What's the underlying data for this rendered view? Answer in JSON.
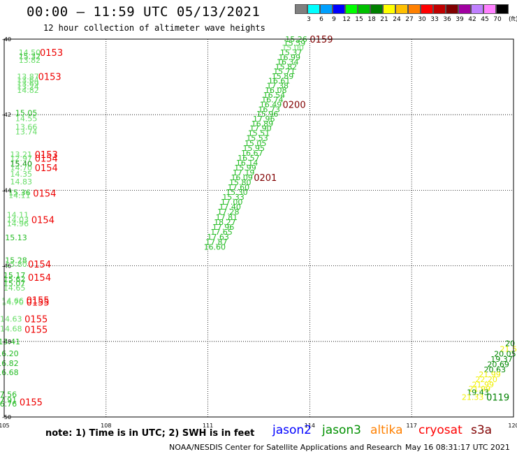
{
  "title": "00:00 – 11:59 UTC 05/13/2021",
  "subtitle": "12 hour collection of altimeter wave heights",
  "legend": {
    "unit": "(ft)",
    "bins": [
      {
        "label": "3",
        "color": "#808080"
      },
      {
        "label": "6",
        "color": "#00ffff"
      },
      {
        "label": "9",
        "color": "#00a0ff"
      },
      {
        "label": "12",
        "color": "#0000ff"
      },
      {
        "label": "15",
        "color": "#00ff00"
      },
      {
        "label": "18",
        "color": "#00c000"
      },
      {
        "label": "21",
        "color": "#008000"
      },
      {
        "label": "24",
        "color": "#ffff00"
      },
      {
        "label": "27",
        "color": "#ffc000"
      },
      {
        "label": "30",
        "color": "#ff8000"
      },
      {
        "label": "33",
        "color": "#ff0000"
      },
      {
        "label": "36",
        "color": "#c00000"
      },
      {
        "label": "39",
        "color": "#800000"
      },
      {
        "label": "42",
        "color": "#a000a0"
      },
      {
        "label": "45",
        "color": "#c080ff"
      },
      {
        "label": "70",
        "color": "#ff80ff"
      },
      {
        "label": "",
        "color": "#000000"
      }
    ]
  },
  "axes": {
    "lon_ticks": [
      "105",
      "108",
      "111",
      "114",
      "117",
      "120"
    ],
    "lat_ticks": [
      "-40",
      "-42",
      "-44",
      "-46",
      "-48",
      "-50"
    ]
  },
  "colors": {
    "light": "#66dd66",
    "mid": "#22bb22",
    "dark": "#008800",
    "yellow": "#f0f000",
    "time_red": "#ee0000",
    "time_dark": "#800000",
    "time_green": "#008000"
  },
  "tracks": [
    {
      "id": "western",
      "points": [
        {
          "v": "14.50",
          "lon": 105.75,
          "lat": -40.35,
          "c": "light"
        },
        {
          "v": "15.32",
          "lon": 105.75,
          "lat": -40.45,
          "c": "mid"
        },
        {
          "v": "13.82",
          "lon": 105.75,
          "lat": -40.55,
          "c": "light"
        },
        {
          "v": "13.87",
          "lon": 105.7,
          "lat": -40.99,
          "c": "light"
        },
        {
          "v": "13.64",
          "lon": 105.7,
          "lat": -41.08,
          "c": "light"
        },
        {
          "v": "13.69",
          "lon": 105.7,
          "lat": -41.17,
          "c": "light"
        },
        {
          "v": "13.24",
          "lon": 105.7,
          "lat": -41.26,
          "c": "light"
        },
        {
          "v": "14.82",
          "lon": 105.7,
          "lat": -41.35,
          "c": "light"
        },
        {
          "v": "15.05",
          "lon": 105.65,
          "lat": -41.95,
          "c": "mid"
        },
        {
          "v": "14.55",
          "lon": 105.65,
          "lat": -42.1,
          "c": "light"
        },
        {
          "v": "13.66",
          "lon": 105.65,
          "lat": -42.32,
          "c": "light"
        },
        {
          "v": "13.74",
          "lon": 105.65,
          "lat": -42.45,
          "c": "light"
        },
        {
          "v": "13.21",
          "lon": 105.5,
          "lat": -43.05,
          "c": "light"
        },
        {
          "v": "12.97",
          "lon": 105.5,
          "lat": -43.15,
          "c": "light"
        },
        {
          "v": "15.40",
          "lon": 105.5,
          "lat": -43.3,
          "c": "dark"
        },
        {
          "v": "14.70",
          "lon": 105.5,
          "lat": -43.4,
          "c": "light"
        },
        {
          "v": "14.35",
          "lon": 105.5,
          "lat": -43.57,
          "c": "light"
        },
        {
          "v": "14.83",
          "lon": 105.5,
          "lat": -43.77,
          "c": "light"
        },
        {
          "v": "15.36",
          "lon": 105.45,
          "lat": -44.06,
          "c": "mid"
        },
        {
          "v": "14.11",
          "lon": 105.45,
          "lat": -44.13,
          "c": "light"
        },
        {
          "v": "14.11",
          "lon": 105.4,
          "lat": -44.65,
          "c": "light"
        },
        {
          "v": "14.03",
          "lon": 105.4,
          "lat": -44.78,
          "c": "light"
        },
        {
          "v": "14.96",
          "lon": 105.4,
          "lat": -44.88,
          "c": "light"
        },
        {
          "v": "15.13",
          "lon": 105.35,
          "lat": -45.25,
          "c": "mid"
        },
        {
          "v": "15.28",
          "lon": 105.35,
          "lat": -45.85,
          "c": "mid"
        },
        {
          "v": "15.80",
          "lon": 105.35,
          "lat": -45.95,
          "c": "light"
        },
        {
          "v": "15.17",
          "lon": 105.3,
          "lat": -46.25,
          "c": "mid"
        },
        {
          "v": "15.62",
          "lon": 105.3,
          "lat": -46.35,
          "c": "mid"
        },
        {
          "v": "15.07",
          "lon": 105.3,
          "lat": -46.46,
          "c": "mid"
        },
        {
          "v": "14.65",
          "lon": 105.3,
          "lat": -46.58,
          "c": "light"
        },
        {
          "v": "14.66",
          "lon": 105.25,
          "lat": -46.92,
          "c": "light"
        },
        {
          "v": "14.70",
          "lon": 105.25,
          "lat": -46.96,
          "c": "light"
        },
        {
          "v": "14.63",
          "lon": 105.2,
          "lat": -47.4,
          "c": "light"
        },
        {
          "v": "14.68",
          "lon": 105.2,
          "lat": -47.66,
          "c": "light"
        },
        {
          "v": "15.41",
          "lon": 105.15,
          "lat": -48.0,
          "c": "mid"
        },
        {
          "v": "16.20",
          "lon": 105.1,
          "lat": -48.32,
          "c": "mid"
        },
        {
          "v": "16.82",
          "lon": 105.1,
          "lat": -48.58,
          "c": "mid"
        },
        {
          "v": "16.68",
          "lon": 105.1,
          "lat": -48.82,
          "c": "mid"
        },
        {
          "v": "17.56",
          "lon": 105.05,
          "lat": -49.4,
          "c": "mid"
        },
        {
          "v": "17.91",
          "lon": 105.05,
          "lat": -49.55,
          "c": "mid"
        },
        {
          "v": "16.76",
          "lon": 105.05,
          "lat": -49.65,
          "c": "mid"
        }
      ],
      "times": [
        {
          "t": "0153",
          "lon": 106.05,
          "lat": -40.35,
          "c": "time_red"
        },
        {
          "t": "0153",
          "lon": 106.0,
          "lat": -40.99,
          "c": "time_red"
        },
        {
          "t": "0153",
          "lon": 105.9,
          "lat": -43.05,
          "c": "time_red"
        },
        {
          "t": "0154",
          "lon": 105.9,
          "lat": -43.15,
          "c": "time_red"
        },
        {
          "t": "0154",
          "lon": 105.9,
          "lat": -43.4,
          "c": "time_red"
        },
        {
          "t": "0154",
          "lon": 105.85,
          "lat": -44.08,
          "c": "time_red"
        },
        {
          "t": "0154",
          "lon": 105.8,
          "lat": -44.78,
          "c": "time_red"
        },
        {
          "t": "0154",
          "lon": 105.7,
          "lat": -45.95,
          "c": "time_red"
        },
        {
          "t": "0154",
          "lon": 105.7,
          "lat": -46.3,
          "c": "time_red"
        },
        {
          "t": "0155",
          "lon": 105.65,
          "lat": -46.9,
          "c": "time_red"
        },
        {
          "t": "0155",
          "lon": 105.65,
          "lat": -46.96,
          "c": "time_red"
        },
        {
          "t": "0155",
          "lon": 105.6,
          "lat": -47.4,
          "c": "time_red"
        },
        {
          "t": "0155",
          "lon": 105.6,
          "lat": -47.68,
          "c": "time_red"
        },
        {
          "t": "0155",
          "lon": 105.45,
          "lat": -49.6,
          "c": "time_red"
        }
      ]
    },
    {
      "id": "central",
      "points": [
        {
          "v": "15.26",
          "lon": 113.6,
          "lat": -40.0,
          "c": "mid"
        },
        {
          "v": "15.59",
          "lon": 113.55,
          "lat": -40.1,
          "c": "mid"
        },
        {
          "v": "15.00",
          "lon": 113.5,
          "lat": -40.22,
          "c": "light"
        },
        {
          "v": "15.37",
          "lon": 113.45,
          "lat": -40.35,
          "c": "mid"
        },
        {
          "v": "16.99",
          "lon": 113.4,
          "lat": -40.48,
          "c": "mid"
        },
        {
          "v": "16.34",
          "lon": 113.35,
          "lat": -40.6,
          "c": "mid"
        },
        {
          "v": "15.82",
          "lon": 113.3,
          "lat": -40.73,
          "c": "mid"
        },
        {
          "v": "15.71",
          "lon": 113.25,
          "lat": -40.85,
          "c": "mid"
        },
        {
          "v": "15.89",
          "lon": 113.2,
          "lat": -40.98,
          "c": "mid"
        },
        {
          "v": "16.61",
          "lon": 113.1,
          "lat": -41.1,
          "c": "mid"
        },
        {
          "v": "17.38",
          "lon": 113.05,
          "lat": -41.23,
          "c": "mid"
        },
        {
          "v": "16.08",
          "lon": 113.0,
          "lat": -41.35,
          "c": "mid"
        },
        {
          "v": "16.54",
          "lon": 112.95,
          "lat": -41.48,
          "c": "mid"
        },
        {
          "v": "16.74",
          "lon": 112.9,
          "lat": -41.6,
          "c": "mid"
        },
        {
          "v": "16.49",
          "lon": 112.85,
          "lat": -41.73,
          "c": "mid"
        },
        {
          "v": "16.73",
          "lon": 112.8,
          "lat": -41.86,
          "c": "mid"
        },
        {
          "v": "15.96",
          "lon": 112.75,
          "lat": -41.98,
          "c": "mid"
        },
        {
          "v": "17.96",
          "lon": 112.65,
          "lat": -42.11,
          "c": "mid"
        },
        {
          "v": "16.89",
          "lon": 112.6,
          "lat": -42.24,
          "c": "mid"
        },
        {
          "v": "17.90",
          "lon": 112.55,
          "lat": -42.36,
          "c": "mid"
        },
        {
          "v": "15.51",
          "lon": 112.5,
          "lat": -42.49,
          "c": "mid"
        },
        {
          "v": "15.53",
          "lon": 112.45,
          "lat": -42.62,
          "c": "mid"
        },
        {
          "v": "15.05",
          "lon": 112.4,
          "lat": -42.75,
          "c": "mid"
        },
        {
          "v": "15.95",
          "lon": 112.35,
          "lat": -42.88,
          "c": "mid"
        },
        {
          "v": "16.67",
          "lon": 112.3,
          "lat": -43.01,
          "c": "mid"
        },
        {
          "v": "16.57",
          "lon": 112.2,
          "lat": -43.14,
          "c": "mid"
        },
        {
          "v": "16.14",
          "lon": 112.15,
          "lat": -43.27,
          "c": "mid"
        },
        {
          "v": "15.99",
          "lon": 112.1,
          "lat": -43.4,
          "c": "mid"
        },
        {
          "v": "17.19",
          "lon": 112.05,
          "lat": -43.53,
          "c": "mid"
        },
        {
          "v": "16.09",
          "lon": 112.0,
          "lat": -43.66,
          "c": "mid"
        },
        {
          "v": "15.80",
          "lon": 111.95,
          "lat": -43.79,
          "c": "mid"
        },
        {
          "v": "17.60",
          "lon": 111.9,
          "lat": -43.92,
          "c": "mid"
        },
        {
          "v": "15.30",
          "lon": 111.85,
          "lat": -44.05,
          "c": "mid"
        },
        {
          "v": "15.33",
          "lon": 111.75,
          "lat": -44.18,
          "c": "mid"
        },
        {
          "v": "17.00",
          "lon": 111.7,
          "lat": -44.31,
          "c": "mid"
        },
        {
          "v": "17.40",
          "lon": 111.65,
          "lat": -44.44,
          "c": "mid"
        },
        {
          "v": "17.28",
          "lon": 111.6,
          "lat": -44.57,
          "c": "mid"
        },
        {
          "v": "17.81",
          "lon": 111.55,
          "lat": -44.71,
          "c": "mid"
        },
        {
          "v": "18.27",
          "lon": 111.5,
          "lat": -44.84,
          "c": "mid"
        },
        {
          "v": "17.96",
          "lon": 111.45,
          "lat": -44.97,
          "c": "mid"
        },
        {
          "v": "17.65",
          "lon": 111.4,
          "lat": -45.1,
          "c": "mid"
        },
        {
          "v": "17.63",
          "lon": 111.3,
          "lat": -45.23,
          "c": "mid"
        },
        {
          "v": "17.87",
          "lon": 111.25,
          "lat": -45.37,
          "c": "mid"
        },
        {
          "v": "16.60",
          "lon": 111.2,
          "lat": -45.5,
          "c": "mid"
        }
      ],
      "times": [
        {
          "t": "0159",
          "lon": 114.0,
          "lat": -40.0,
          "c": "time_dark"
        },
        {
          "t": "0200",
          "lon": 113.2,
          "lat": -41.73,
          "c": "time_dark"
        },
        {
          "t": "0201",
          "lon": 112.35,
          "lat": -43.66,
          "c": "time_dark"
        }
      ]
    },
    {
      "id": "southeast",
      "points": [
        {
          "v": "20",
          "lon": 119.9,
          "lat": -48.05,
          "c": "dark"
        },
        {
          "v": "21.5",
          "lon": 119.85,
          "lat": -48.2,
          "c": "yellow"
        },
        {
          "v": "20.05",
          "lon": 119.75,
          "lat": -48.33,
          "c": "dark"
        },
        {
          "v": "19.37",
          "lon": 119.65,
          "lat": -48.47,
          "c": "dark"
        },
        {
          "v": "20.69",
          "lon": 119.55,
          "lat": -48.6,
          "c": "dark"
        },
        {
          "v": "20.63",
          "lon": 119.45,
          "lat": -48.74,
          "c": "dark"
        },
        {
          "v": "21.99",
          "lon": 119.3,
          "lat": -48.87,
          "c": "yellow"
        },
        {
          "v": "22.20",
          "lon": 119.2,
          "lat": -49.0,
          "c": "yellow"
        },
        {
          "v": "21.99",
          "lon": 119.1,
          "lat": -49.14,
          "c": "yellow"
        },
        {
          "v": "21.99",
          "lon": 119.0,
          "lat": -49.25,
          "c": "yellow"
        },
        {
          "v": "19.43",
          "lon": 118.95,
          "lat": -49.34,
          "c": "dark"
        },
        {
          "v": "21.33",
          "lon": 118.8,
          "lat": -49.47,
          "c": "yellow"
        }
      ],
      "times": [
        {
          "t": "0119",
          "lon": 119.2,
          "lat": -49.47,
          "c": "time_green"
        }
      ]
    }
  ],
  "note": "note: 1) Time is in UTC; 2) SWH is in feet",
  "satellites": [
    {
      "name": "jason2",
      "color": "#0000ff"
    },
    {
      "name": "jason3",
      "color": "#009000"
    },
    {
      "name": "altika",
      "color": "#ff8000"
    },
    {
      "name": "cryosat",
      "color": "#ff0000"
    },
    {
      "name": "s3a",
      "color": "#800000"
    }
  ],
  "footer": {
    "credit": "NOAA/NESDIS Center for Satellite Applications and Research",
    "timestamp": "May 16 08:31:17 UTC 2021"
  }
}
